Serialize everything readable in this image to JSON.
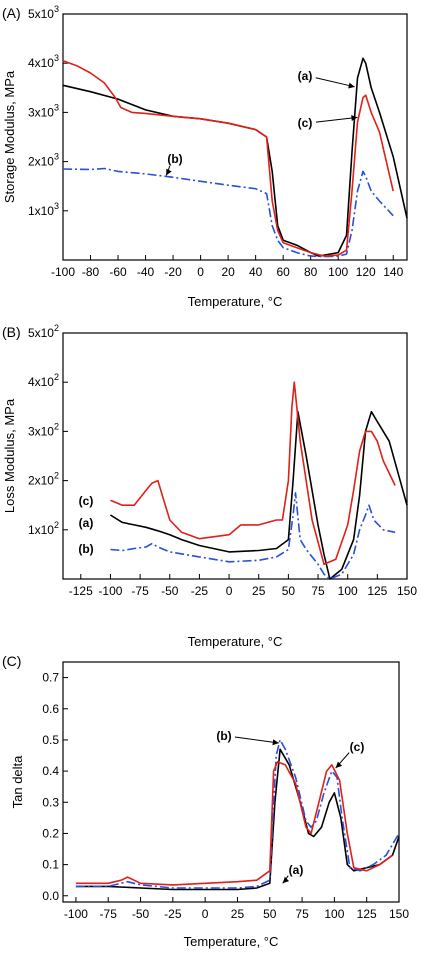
{
  "colors": {
    "a": "#000000",
    "b": "#2a4fd8",
    "c": "#e0201a"
  },
  "chart_data": [
    {
      "type": "line",
      "panel_label": "(A)",
      "xlabel": "Temperature, °C",
      "ylabel": "Storage Modulus, MPa",
      "xlim": [
        -100,
        150
      ],
      "ylim": [
        0,
        5000
      ],
      "xticks": [
        -100,
        -80,
        -60,
        -40,
        -20,
        0,
        20,
        40,
        60,
        80,
        100,
        120,
        140
      ],
      "xtick_labels": [
        "-100",
        "-80",
        "-60",
        "-40",
        "-20",
        "0",
        "20",
        "40",
        "60",
        "80",
        "100",
        "120",
        "140"
      ],
      "yticks": [
        1000,
        2000,
        3000,
        4000,
        5000
      ],
      "ytick_labels": [
        {
          "m": "1x10",
          "e": "3"
        },
        {
          "m": "2x10",
          "e": "3"
        },
        {
          "m": "3x10",
          "e": "3"
        },
        {
          "m": "4x10",
          "e": "3"
        },
        {
          "m": "5x10",
          "e": "3"
        }
      ],
      "series": [
        {
          "name": "(a)",
          "color_key": "a",
          "style": "solid",
          "x": [
            -100,
            -80,
            -60,
            -40,
            -20,
            0,
            20,
            40,
            48,
            52,
            56,
            60,
            70,
            80,
            86,
            100,
            106,
            110,
            114,
            118,
            120,
            124,
            130,
            140,
            150
          ],
          "y": [
            3550,
            3420,
            3270,
            3050,
            2920,
            2870,
            2780,
            2650,
            2500,
            1800,
            700,
            400,
            300,
            150,
            80,
            150,
            500,
            2200,
            3700,
            4100,
            4000,
            3500,
            3000,
            2100,
            850
          ]
        },
        {
          "name": "(b)",
          "color_key": "b",
          "style": "dashdot",
          "x": [
            -100,
            -80,
            -70,
            -60,
            -40,
            -20,
            0,
            20,
            40,
            48,
            52,
            56,
            60,
            70,
            80,
            90,
            100,
            106,
            110,
            114,
            118,
            120,
            124,
            130,
            140
          ],
          "y": [
            1850,
            1840,
            1860,
            1800,
            1750,
            1680,
            1600,
            1520,
            1450,
            1350,
            700,
            400,
            250,
            150,
            80,
            70,
            80,
            120,
            600,
            1400,
            1800,
            1700,
            1400,
            1200,
            900
          ]
        },
        {
          "name": "(c)",
          "color_key": "c",
          "style": "solid",
          "x": [
            -100,
            -90,
            -80,
            -70,
            -62,
            -58,
            -50,
            -40,
            -20,
            0,
            20,
            40,
            48,
            52,
            56,
            60,
            70,
            80,
            90,
            100,
            106,
            110,
            114,
            118,
            120,
            124,
            130,
            140
          ],
          "y": [
            4050,
            3950,
            3800,
            3600,
            3300,
            3100,
            3000,
            2980,
            2920,
            2870,
            2780,
            2650,
            2500,
            1200,
            600,
            350,
            250,
            150,
            80,
            100,
            200,
            1400,
            2800,
            3300,
            3350,
            3000,
            2600,
            1400
          ]
        }
      ],
      "annotations": [
        {
          "text": "(a)",
          "target": [
            112,
            3520
          ]
        },
        {
          "text": "(c)",
          "target": [
            114,
            2900
          ]
        },
        {
          "text": "(b)",
          "target": [
            -25,
            1720
          ]
        }
      ]
    },
    {
      "type": "line",
      "panel_label": "(B)",
      "xlabel": "Temperature, °C",
      "ylabel": "Loss Modulus, MPa",
      "xlim": [
        -140,
        150
      ],
      "ylim": [
        0,
        500
      ],
      "xticks": [
        -125,
        -100,
        -75,
        -50,
        -25,
        0,
        25,
        50,
        75,
        100,
        125,
        150
      ],
      "xtick_labels": [
        "-125",
        "-100",
        "-75",
        "-50",
        "-25",
        "0",
        "25",
        "50",
        "75",
        "100",
        "125",
        "150"
      ],
      "yticks": [
        100,
        200,
        300,
        400,
        500
      ],
      "ytick_labels": [
        {
          "m": "1x10",
          "e": "2"
        },
        {
          "m": "2x10",
          "e": "2"
        },
        {
          "m": "3x10",
          "e": "2"
        },
        {
          "m": "4x10",
          "e": "2"
        },
        {
          "m": "5x10",
          "e": "2"
        }
      ],
      "series": [
        {
          "name": "(a)",
          "color_key": "a",
          "style": "solid",
          "x": [
            -100,
            -90,
            -80,
            -70,
            -60,
            -50,
            -40,
            -25,
            0,
            25,
            40,
            50,
            54,
            58,
            65,
            75,
            80,
            85,
            95,
            105,
            110,
            115,
            120,
            125,
            135,
            150
          ],
          "y": [
            130,
            115,
            110,
            105,
            98,
            90,
            80,
            68,
            55,
            58,
            62,
            80,
            200,
            340,
            250,
            110,
            50,
            0,
            20,
            80,
            170,
            300,
            340,
            320,
            280,
            150
          ]
        },
        {
          "name": "(b)",
          "color_key": "b",
          "style": "dashdot",
          "x": [
            -100,
            -90,
            -80,
            -70,
            -65,
            -60,
            -50,
            -25,
            0,
            25,
            40,
            50,
            54,
            56,
            60,
            65,
            75,
            80,
            85,
            95,
            105,
            110,
            115,
            118,
            122,
            130,
            140
          ],
          "y": [
            60,
            58,
            62,
            65,
            72,
            65,
            55,
            45,
            35,
            38,
            45,
            60,
            130,
            175,
            80,
            60,
            30,
            10,
            0,
            10,
            50,
            100,
            130,
            150,
            120,
            100,
            95
          ]
        },
        {
          "name": "(c)",
          "color_key": "c",
          "style": "solid",
          "x": [
            -100,
            -90,
            -80,
            -70,
            -65,
            -60,
            -55,
            -50,
            -40,
            -25,
            0,
            10,
            25,
            40,
            45,
            50,
            53,
            55,
            60,
            70,
            80,
            90,
            100,
            105,
            110,
            115,
            120,
            125,
            130,
            140
          ],
          "y": [
            160,
            150,
            150,
            180,
            195,
            200,
            160,
            120,
            95,
            82,
            90,
            110,
            110,
            120,
            120,
            200,
            350,
            400,
            280,
            120,
            30,
            40,
            110,
            180,
            260,
            300,
            300,
            280,
            240,
            190
          ]
        }
      ],
      "annotations": [
        {
          "text": "(c)",
          "target": [
            -130,
            165
          ]
        },
        {
          "text": "(a)",
          "target": [
            -130,
            120
          ]
        },
        {
          "text": "(b)",
          "target": [
            -130,
            60
          ]
        }
      ]
    },
    {
      "type": "line",
      "panel_label": "(C)",
      "xlabel": "Temperature, °C",
      "ylabel": "Tan delta",
      "xlim": [
        -110,
        150
      ],
      "ylim": [
        -0.02,
        0.75
      ],
      "xticks": [
        -100,
        -75,
        -50,
        -25,
        0,
        25,
        50,
        75,
        100,
        125,
        150
      ],
      "xtick_labels": [
        "-100",
        "-75",
        "-50",
        "-25",
        "0",
        "25",
        "50",
        "75",
        "100",
        "125",
        "150"
      ],
      "yticks": [
        0.0,
        0.1,
        0.2,
        0.3,
        0.4,
        0.5,
        0.6,
        0.7
      ],
      "ytick_labels": [
        "0.0",
        "0.1",
        "0.2",
        "0.3",
        "0.4",
        "0.5",
        "0.6",
        "0.7"
      ],
      "series": [
        {
          "name": "(a)",
          "color_key": "a",
          "style": "solid",
          "x": [
            -100,
            -75,
            -50,
            -25,
            0,
            25,
            40,
            50,
            54,
            58,
            65,
            75,
            80,
            84,
            90,
            96,
            100,
            105,
            110,
            115,
            125,
            135,
            145,
            150
          ],
          "y": [
            0.03,
            0.03,
            0.025,
            0.02,
            0.02,
            0.02,
            0.025,
            0.04,
            0.3,
            0.47,
            0.42,
            0.28,
            0.2,
            0.19,
            0.22,
            0.3,
            0.33,
            0.25,
            0.1,
            0.08,
            0.09,
            0.1,
            0.13,
            0.19
          ]
        },
        {
          "name": "(b)",
          "color_key": "b",
          "style": "dashdot",
          "x": [
            -100,
            -75,
            -60,
            -50,
            -25,
            0,
            25,
            40,
            50,
            55,
            58,
            62,
            70,
            78,
            82,
            86,
            92,
            98,
            102,
            106,
            112,
            120,
            130,
            140,
            150
          ],
          "y": [
            0.03,
            0.03,
            0.045,
            0.035,
            0.025,
            0.025,
            0.025,
            0.03,
            0.05,
            0.45,
            0.5,
            0.47,
            0.38,
            0.24,
            0.22,
            0.24,
            0.33,
            0.4,
            0.38,
            0.25,
            0.09,
            0.08,
            0.1,
            0.13,
            0.2
          ]
        },
        {
          "name": "(c)",
          "color_key": "c",
          "style": "solid",
          "x": [
            -100,
            -75,
            -65,
            -60,
            -55,
            -50,
            -25,
            0,
            25,
            40,
            50,
            53,
            56,
            62,
            70,
            78,
            82,
            88,
            94,
            98,
            104,
            110,
            115,
            125,
            135,
            145
          ],
          "y": [
            0.04,
            0.04,
            0.05,
            0.06,
            0.05,
            0.04,
            0.035,
            0.04,
            0.045,
            0.05,
            0.08,
            0.4,
            0.43,
            0.42,
            0.36,
            0.22,
            0.2,
            0.3,
            0.4,
            0.42,
            0.37,
            0.2,
            0.09,
            0.08,
            0.1,
            0.13
          ]
        }
      ],
      "annotations": [
        {
          "text": "(b)",
          "target": [
            57,
            0.49
          ]
        },
        {
          "text": "(c)",
          "target": [
            101,
            0.41
          ]
        },
        {
          "text": "(a)",
          "target": [
            60,
            0.04
          ]
        }
      ]
    }
  ]
}
